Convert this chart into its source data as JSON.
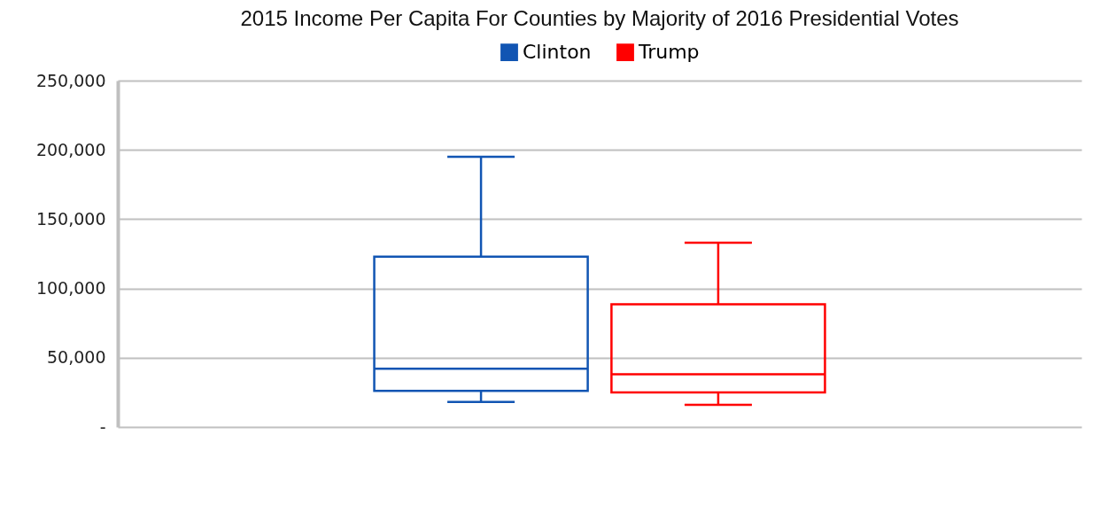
{
  "chart_data": {
    "type": "box",
    "title": "2015 Income Per Capita For Counties by Majority of 2016 Presidential Votes",
    "categories": [
      null
    ],
    "series": [
      {
        "name": "Clinton",
        "color": "#1155b3",
        "boxes": [
          {
            "low": 18000,
            "q1": 26000,
            "median": 42000,
            "q3": 123000,
            "high": 195000
          }
        ]
      },
      {
        "name": "Trump",
        "color": "#ff0000",
        "boxes": [
          {
            "low": 16000,
            "q1": 25000,
            "median": 38000,
            "q3": 88500,
            "high": 133000
          }
        ]
      }
    ],
    "ylim": [
      0,
      250000
    ],
    "yticks": [
      {
        "value": 0,
        "label": "-"
      },
      {
        "value": 50000,
        "label": "50,000"
      },
      {
        "value": 100000,
        "label": "100,000"
      },
      {
        "value": 150000,
        "label": "150,000"
      },
      {
        "value": 200000,
        "label": "200,000"
      },
      {
        "value": 250000,
        "label": "250,000"
      }
    ],
    "grid": "y",
    "legend": "top"
  }
}
